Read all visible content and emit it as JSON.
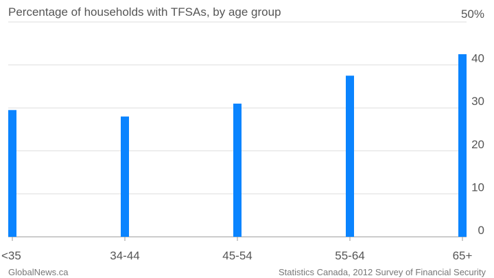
{
  "chart_data": {
    "type": "bar",
    "title": "Percentage of households with TFSAs, by age group",
    "categories": [
      "<35",
      "34-44",
      "45-54",
      "55-64",
      "65+"
    ],
    "values": [
      29.5,
      28,
      31,
      37.5,
      42.5
    ],
    "ylim": [
      0,
      50
    ],
    "yticks": [
      "0",
      "10",
      "20",
      "30",
      "40",
      "50%"
    ],
    "bar_color": "#0a84ff",
    "grid": true,
    "xlabel": "",
    "ylabel": ""
  },
  "footer": {
    "left": "GlobalNews.ca",
    "right": "Statistics Canada, 2012 Survey of Financial Security"
  }
}
